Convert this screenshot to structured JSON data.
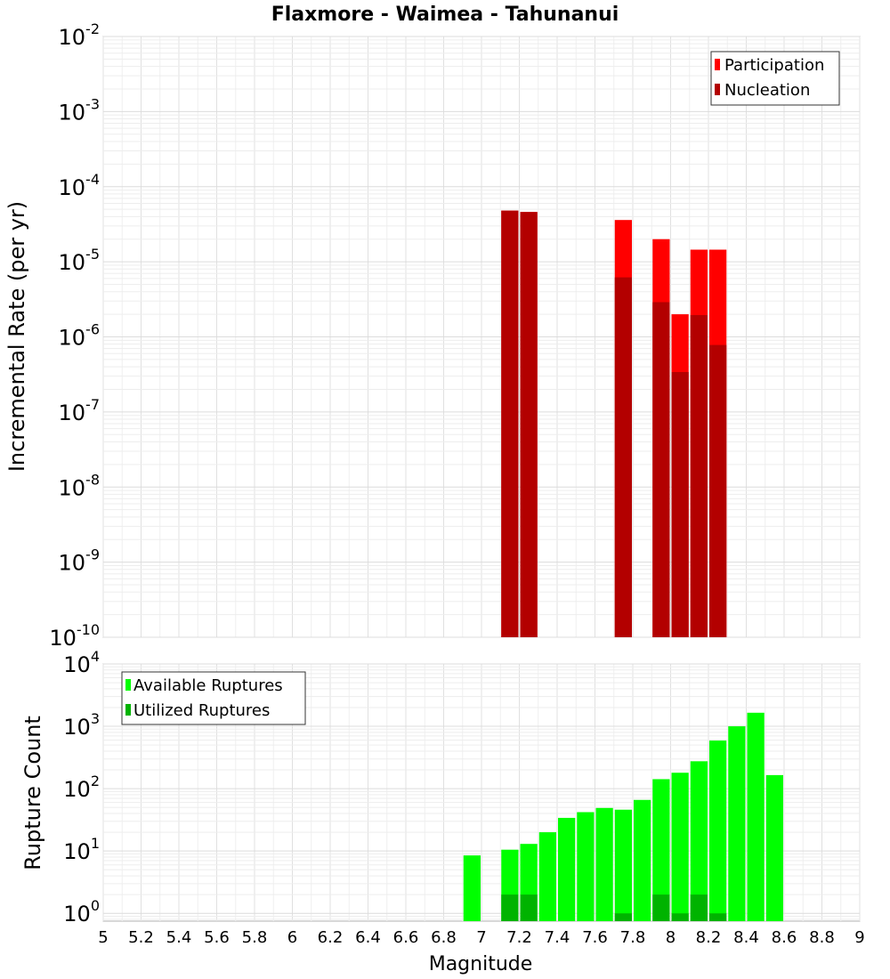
{
  "title": "Flaxmore - Waimea - Tahunanui",
  "chart_data": [
    {
      "type": "bar",
      "ylabel": "Incremental Rate (per yr)",
      "yscale": "log",
      "ylim": [
        1e-10,
        0.01
      ],
      "xlim": [
        5,
        9
      ],
      "bar_width": 0.1,
      "grid": true,
      "legend_position": "top-right",
      "ytick_exponents": [
        "-10",
        "-9",
        "-8",
        "-7",
        "-6",
        "-5",
        "-4",
        "-3",
        "-2"
      ],
      "series": [
        {
          "name": "Participation",
          "color": "#ff0000",
          "points": [
            {
              "x": 7.15,
              "y": 4.8e-05
            },
            {
              "x": 7.25,
              "y": 4.6e-05
            },
            {
              "x": 7.75,
              "y": 3.6e-05
            },
            {
              "x": 7.95,
              "y": 2e-05
            },
            {
              "x": 8.05,
              "y": 2e-06
            },
            {
              "x": 8.15,
              "y": 1.45e-05
            },
            {
              "x": 8.25,
              "y": 1.45e-05
            }
          ]
        },
        {
          "name": "Nucleation",
          "color": "#b30000",
          "points": [
            {
              "x": 7.15,
              "y": 4.8e-05
            },
            {
              "x": 7.25,
              "y": 4.6e-05
            },
            {
              "x": 7.75,
              "y": 6.2e-06
            },
            {
              "x": 7.95,
              "y": 2.9e-06
            },
            {
              "x": 8.05,
              "y": 3.4e-07
            },
            {
              "x": 8.15,
              "y": 1.95e-06
            },
            {
              "x": 8.25,
              "y": 7.8e-07
            }
          ]
        }
      ]
    },
    {
      "type": "bar",
      "ylabel": "Rupture Count",
      "xlabel": "Magnitude",
      "yscale": "log",
      "ylim": [
        0.75,
        10000
      ],
      "xlim": [
        5,
        9
      ],
      "bar_width": 0.1,
      "grid": true,
      "legend_position": "top-left",
      "ytick_exponents": [
        "0",
        "1",
        "2",
        "3",
        "4"
      ],
      "xticks": [
        "5",
        "5.2",
        "5.4",
        "5.6",
        "5.8",
        "6",
        "6.2",
        "6.4",
        "6.6",
        "6.8",
        "7",
        "7.2",
        "7.4",
        "7.6",
        "7.8",
        "8",
        "8.2",
        "8.4",
        "8.6",
        "8.8",
        "9"
      ],
      "series": [
        {
          "name": "Available Ruptures",
          "color": "#00ff00",
          "points": [
            {
              "x": 6.95,
              "y": 8.5
            },
            {
              "x": 7.15,
              "y": 10.5
            },
            {
              "x": 7.25,
              "y": 13
            },
            {
              "x": 7.35,
              "y": 20
            },
            {
              "x": 7.45,
              "y": 34
            },
            {
              "x": 7.55,
              "y": 42
            },
            {
              "x": 7.65,
              "y": 49
            },
            {
              "x": 7.75,
              "y": 46
            },
            {
              "x": 7.85,
              "y": 66
            },
            {
              "x": 7.95,
              "y": 142
            },
            {
              "x": 8.05,
              "y": 180
            },
            {
              "x": 8.15,
              "y": 275
            },
            {
              "x": 8.25,
              "y": 590
            },
            {
              "x": 8.35,
              "y": 1000
            },
            {
              "x": 8.45,
              "y": 1650
            },
            {
              "x": 8.55,
              "y": 165
            }
          ]
        },
        {
          "name": "Utilized Ruptures",
          "color": "#00b300",
          "points": [
            {
              "x": 7.15,
              "y": 2
            },
            {
              "x": 7.25,
              "y": 2
            },
            {
              "x": 7.75,
              "y": 1
            },
            {
              "x": 7.95,
              "y": 2
            },
            {
              "x": 8.05,
              "y": 1
            },
            {
              "x": 8.15,
              "y": 2
            },
            {
              "x": 8.25,
              "y": 1
            }
          ]
        }
      ]
    }
  ]
}
